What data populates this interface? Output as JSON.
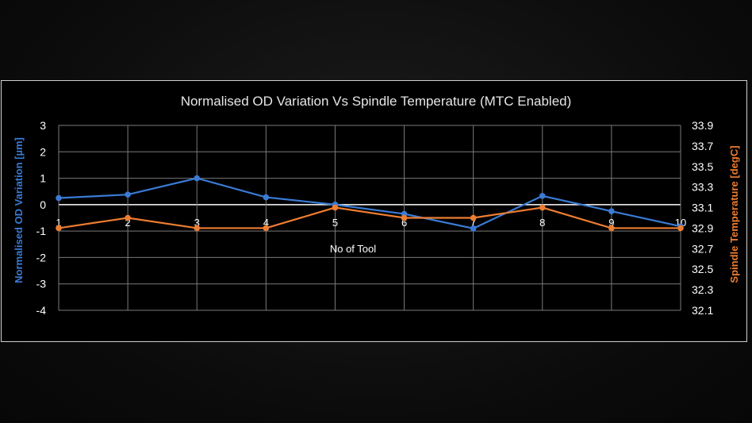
{
  "chart_data": {
    "type": "line",
    "title": "Normalised OD Variation Vs Spindle Temperature (MTC Enabled)",
    "xlabel": "No of Tool",
    "categories": [
      "1",
      "2",
      "3",
      "4",
      "5",
      "6",
      "7",
      "8",
      "9",
      "10"
    ],
    "y_left": {
      "label": "Normalised OD Variation [µm]",
      "ticks": [
        "3",
        "2",
        "1",
        "0",
        "-1",
        "-2",
        "-3",
        "-4"
      ],
      "ylim": [
        -4,
        3
      ]
    },
    "y_right": {
      "label": "Spindle Temperature [degC]",
      "ticks": [
        "33.9",
        "33.7",
        "33.5",
        "33.3",
        "33.1",
        "32.9",
        "32.7",
        "32.5",
        "32.3",
        "32.1"
      ],
      "ylim": [
        32.1,
        33.9
      ]
    },
    "series": [
      {
        "name": "Normalised OD Variation",
        "axis": "left",
        "color": "#3a7bd5",
        "values": [
          0.25,
          0.38,
          1.0,
          0.28,
          0.0,
          -0.35,
          -0.9,
          0.33,
          -0.25,
          -0.82
        ]
      },
      {
        "name": "Spindle Temperature",
        "axis": "right",
        "color": "#ed7d31",
        "values": [
          32.9,
          33.0,
          32.9,
          32.9,
          33.1,
          33.0,
          33.0,
          33.1,
          32.9,
          32.9
        ]
      }
    ],
    "grid": true
  }
}
